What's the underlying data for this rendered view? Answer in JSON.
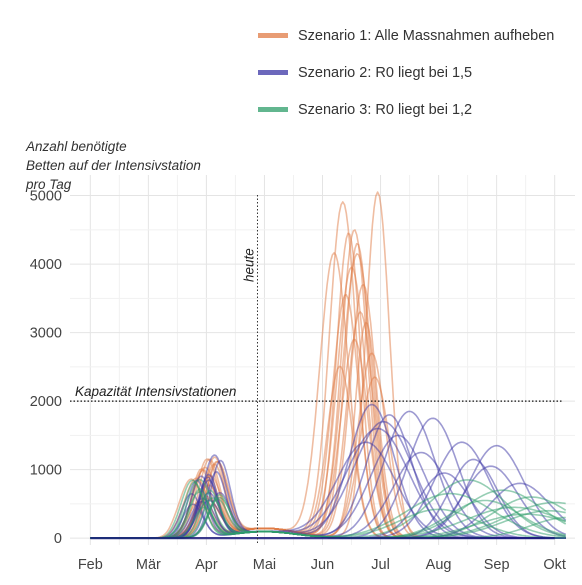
{
  "legend": [
    {
      "label": "Szenario 1: Alle Massnahmen aufheben",
      "color": "#E07B46"
    },
    {
      "label": "Szenario 2: R0 liegt bei 1,5",
      "color": "#3B36A6"
    },
    {
      "label": "Szenario 3: R0 liegt bei 1,2",
      "color": "#2E9E6A"
    }
  ],
  "ylabel_lines": [
    "Anzahl benötigte",
    "Betten auf der Intensivstation",
    "pro Tag"
  ],
  "chart_data": {
    "type": "line",
    "x_unit": "month index (0 = Feb, 8 = Okt)",
    "xticks": [
      {
        "x": 0,
        "label": "Feb"
      },
      {
        "x": 1,
        "label": "Mär"
      },
      {
        "x": 2,
        "label": "Apr"
      },
      {
        "x": 3,
        "label": "Mai"
      },
      {
        "x": 4,
        "label": "Jun"
      },
      {
        "x": 5,
        "label": "Jul"
      },
      {
        "x": 6,
        "label": "Aug"
      },
      {
        "x": 7,
        "label": "Sep"
      },
      {
        "x": 8,
        "label": "Okt"
      }
    ],
    "yticks": [
      0,
      1000,
      2000,
      3000,
      4000,
      5000
    ],
    "xlim": [
      -0.35,
      8.35
    ],
    "ylim": [
      -100,
      5300
    ],
    "grid": true,
    "annotations": {
      "capacity": {
        "label": "Kapazität Intensivstationen",
        "value": 2000
      },
      "today": {
        "label": "heute",
        "x": 2.88
      }
    },
    "series_groups": [
      {
        "name": "Szenario 1: Alle Massnahmen aufheben",
        "color": "#E07B46",
        "second_peaks": [
          {
            "t": 4.95,
            "h": 5050
          },
          {
            "t": 4.2,
            "h": 4150
          },
          {
            "t": 4.35,
            "h": 4900
          },
          {
            "t": 4.55,
            "h": 4500
          },
          {
            "t": 4.45,
            "h": 4450
          },
          {
            "t": 4.6,
            "h": 4150
          },
          {
            "t": 4.5,
            "h": 3950
          },
          {
            "t": 4.7,
            "h": 3700
          },
          {
            "t": 4.4,
            "h": 3550
          },
          {
            "t": 4.65,
            "h": 3300
          },
          {
            "t": 4.75,
            "h": 3150
          },
          {
            "t": 4.55,
            "h": 2900
          },
          {
            "t": 4.85,
            "h": 2700
          },
          {
            "t": 4.3,
            "h": 2500
          },
          {
            "t": 4.9,
            "h": 2350
          },
          {
            "t": 4.6,
            "h": 4300
          }
        ]
      },
      {
        "name": "Szenario 2: R0 liegt bei 1,5",
        "color": "#3B36A6",
        "second_peaks": [
          {
            "t": 4.85,
            "h": 1950
          },
          {
            "t": 5.15,
            "h": 1800
          },
          {
            "t": 5.5,
            "h": 1850
          },
          {
            "t": 5.9,
            "h": 1750
          },
          {
            "t": 4.95,
            "h": 1600
          },
          {
            "t": 5.3,
            "h": 1500
          },
          {
            "t": 6.4,
            "h": 1400
          },
          {
            "t": 7.0,
            "h": 1350
          },
          {
            "t": 5.7,
            "h": 1250
          },
          {
            "t": 6.9,
            "h": 1050
          },
          {
            "t": 6.1,
            "h": 950
          },
          {
            "t": 7.4,
            "h": 800
          },
          {
            "t": 5.05,
            "h": 1700
          },
          {
            "t": 6.6,
            "h": 1150
          },
          {
            "t": 4.75,
            "h": 1400
          }
        ]
      },
      {
        "name": "Szenario 3: R0 liegt bei 1,2",
        "color": "#2E9E6A",
        "second_peaks": [
          {
            "t": 6.5,
            "h": 850
          },
          {
            "t": 7.1,
            "h": 700
          },
          {
            "t": 7.6,
            "h": 600
          },
          {
            "t": 8.0,
            "h": 520
          },
          {
            "t": 6.2,
            "h": 650
          },
          {
            "t": 7.3,
            "h": 450
          },
          {
            "t": 7.9,
            "h": 400
          },
          {
            "t": 6.8,
            "h": 550
          },
          {
            "t": 7.5,
            "h": 350
          },
          {
            "t": 8.2,
            "h": 300
          },
          {
            "t": 6.0,
            "h": 420
          }
        ]
      }
    ]
  }
}
